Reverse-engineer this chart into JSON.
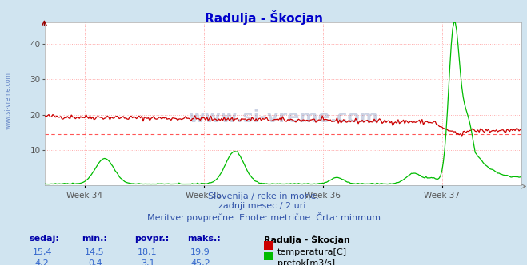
{
  "title": "Radulja - Škocjan",
  "background_color": "#d0e4f0",
  "plot_bg_color": "#ffffff",
  "grid_color": "#ffaaaa",
  "ylim": [
    0,
    46
  ],
  "yticks": [
    10,
    20,
    30,
    40
  ],
  "xlabel_weeks": [
    "Week 34",
    "Week 35",
    "Week 36",
    "Week 37"
  ],
  "temp_color": "#cc0000",
  "flow_color": "#00bb00",
  "min_line_color": "#ff5555",
  "min_line_value": 14.5,
  "title_color": "#0000cc",
  "title_fontsize": 11,
  "subtitle_lines": [
    "Slovenija / reke in morje.",
    "zadnji mesec / 2 uri.",
    "Meritve: povprečne  Enote: metrične  Črta: minmum"
  ],
  "subtitle_color": "#3355aa",
  "subtitle_fontsize": 8,
  "legend_title": "Radulja - Škocjan",
  "legend_items": [
    "temperatura[C]",
    "pretok[m3/s]"
  ],
  "legend_colors": [
    "#cc0000",
    "#00bb00"
  ],
  "stats_headers": [
    "sedaj:",
    "min.:",
    "povpr.:",
    "maks.:"
  ],
  "stats_temp": [
    "15,4",
    "14,5",
    "18,1",
    "19,9"
  ],
  "stats_flow": [
    "4,2",
    "0,4",
    "3,1",
    "45,2"
  ],
  "watermark_color": "#1a44aa",
  "n_points": 360,
  "tick_color": "#555555",
  "axis_color": "#888888",
  "left_margin_color": "#c8dce8"
}
